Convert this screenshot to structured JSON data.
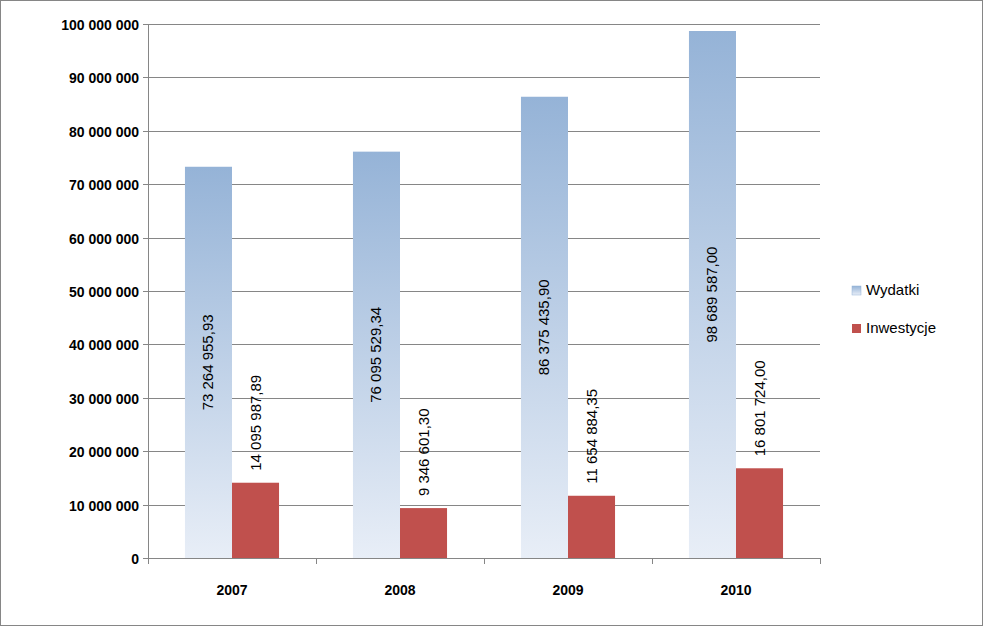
{
  "chart_data": {
    "type": "bar",
    "categories": [
      "2007",
      "2008",
      "2009",
      "2010"
    ],
    "series": [
      {
        "name": "Wydatki",
        "color": "#95b3d7",
        "values": [
          73264955.93,
          76095529.34,
          86375435.9,
          98689587.0
        ],
        "value_labels": [
          "73 264 955,93",
          "76 095 529,34",
          "86 375 435,90",
          "98 689 587,00"
        ]
      },
      {
        "name": "Inwestycje",
        "color": "#c0504d",
        "values": [
          14095987.89,
          9346601.3,
          11654884.35,
          16801724.0
        ],
        "value_labels": [
          "14 095 987,89",
          "9 346 601,30",
          "11 654 884,35",
          "16 801 724,00"
        ]
      }
    ],
    "ylim": [
      0,
      100000000
    ],
    "yticks": [
      0,
      {
        "value": 10000000,
        "label": "10 000 000"
      },
      {
        "value": 20000000,
        "label": "20 000 000"
      },
      {
        "value": 30000000,
        "label": "30 000 000"
      },
      {
        "value": 40000000,
        "label": "40 000 000"
      },
      {
        "value": 50000000,
        "label": "50 000 000"
      },
      {
        "value": 60000000,
        "label": "60 000 000"
      },
      {
        "value": 70000000,
        "label": "70 000 000"
      },
      {
        "value": 80000000,
        "label": "80 000 000"
      },
      {
        "value": 90000000,
        "label": "90 000 000"
      },
      {
        "value": 100000000,
        "label": "100 000 000"
      }
    ],
    "grid": true,
    "legend": "right",
    "data_labels": true
  }
}
